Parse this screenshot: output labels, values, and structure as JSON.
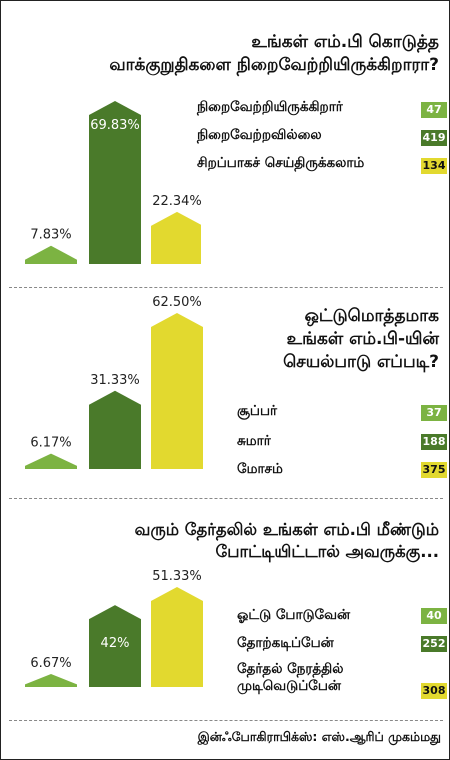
{
  "colors": {
    "light": "#7cb342",
    "dark": "#4a7a2a",
    "yellow": "#e2d92f"
  },
  "chart_data": [
    {
      "type": "bar",
      "title": "உங்கள் எம்.பி கொடுத்த வாக்குறுதிகளை நிறைவேற்றியிருக்கிறாரா?",
      "title_lines": [
        "உங்கள் எம்.பி கொடுத்த",
        "வாக்குறுதிகளை நிறைவேற்றியிருக்கிறாரா?"
      ],
      "categories": [
        "நிறைவேற்றியிருக்கிறார்",
        "நிறைவேற்றவில்லை",
        "சிறப்பாகச் செய்திருக்கலாம்"
      ],
      "values": [
        7.83,
        69.83,
        22.34
      ],
      "value_labels": [
        "7.83%",
        "69.83%",
        "22.34%"
      ],
      "counts": [
        "47",
        "419",
        "134"
      ],
      "colors": [
        "#7cb342",
        "#4a7a2a",
        "#e2d92f"
      ]
    },
    {
      "type": "bar",
      "title": "ஒட்டுமொத்தமாக உங்கள் எம்.பி-யின் செயல்பாடு எப்படி?",
      "title_lines": [
        "ஒட்டுமொத்தமாக",
        "உங்கள் எம்.பி-யின்",
        "செயல்பாடு எப்படி?"
      ],
      "categories": [
        "சூப்பர்",
        "சுமார்",
        "மோசம்"
      ],
      "values": [
        6.17,
        31.33,
        62.5
      ],
      "value_labels": [
        "6.17%",
        "31.33%",
        "62.50%"
      ],
      "counts": [
        "37",
        "188",
        "375"
      ],
      "colors": [
        "#7cb342",
        "#4a7a2a",
        "#e2d92f"
      ]
    },
    {
      "type": "bar",
      "title": "வரும் தேர்தலில் உங்கள் எம்.பி மீண்டும் போட்டியிட்டால் அவருக்கு...",
      "title_lines": [
        "வரும் தேர்தலில் உங்கள் எம்.பி மீண்டும்",
        "போட்டியிட்டால் அவருக்கு..."
      ],
      "categories": [
        "ஓட்டு போடுவேன்",
        "தோற்கடிப்பேன்",
        "தேர்தல் நேரத்தில் முடிவெடுப்பேன்"
      ],
      "category_lines": [
        [
          "ஓட்டு போடுவேன்"
        ],
        [
          "தோற்கடிப்பேன்"
        ],
        [
          "தேர்தல் நேரத்தில்",
          "முடிவெடுப்பேன்"
        ]
      ],
      "values": [
        6.67,
        42,
        51.33
      ],
      "value_labels": [
        "6.67%",
        "42%",
        "51.33%"
      ],
      "counts": [
        "40",
        "252",
        "308"
      ],
      "colors": [
        "#7cb342",
        "#4a7a2a",
        "#e2d92f"
      ]
    }
  ],
  "footer": "இன்ஃபோகிராபிக்ஸ்: எஸ்.ஆரிப் முகம்மது"
}
